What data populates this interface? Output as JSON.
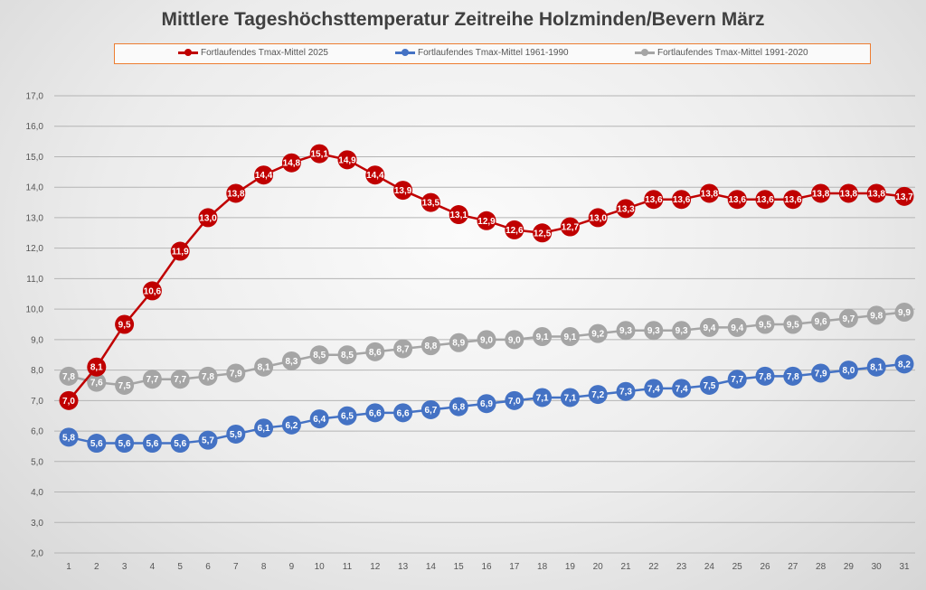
{
  "chart_data": {
    "type": "line",
    "title": "Mittlere Tageshöchsttemperatur Zeitreihe Holzminden/Bevern März",
    "xlabel": "",
    "ylabel": "",
    "ylim": [
      2.0,
      17.0
    ],
    "yticks": [
      "2,0",
      "3,0",
      "4,0",
      "5,0",
      "6,0",
      "7,0",
      "8,0",
      "9,0",
      "10,0",
      "11,0",
      "12,0",
      "13,0",
      "14,0",
      "15,0",
      "16,0",
      "17,0"
    ],
    "x": [
      1,
      2,
      3,
      4,
      5,
      6,
      7,
      8,
      9,
      10,
      11,
      12,
      13,
      14,
      15,
      16,
      17,
      18,
      19,
      20,
      21,
      22,
      23,
      24,
      25,
      26,
      27,
      28,
      29,
      30,
      31
    ],
    "grid": true,
    "legend_position": "top",
    "series": [
      {
        "name": "Fortlaufendes Tmax-Mittel 1991-2020",
        "color": "#a5a5a5",
        "values": [
          7.8,
          7.6,
          7.5,
          7.7,
          7.7,
          7.8,
          7.9,
          8.1,
          8.3,
          8.5,
          8.5,
          8.6,
          8.7,
          8.8,
          8.9,
          9.0,
          9.0,
          9.1,
          9.1,
          9.2,
          9.3,
          9.3,
          9.3,
          9.4,
          9.4,
          9.5,
          9.5,
          9.6,
          9.7,
          9.8,
          9.9
        ]
      },
      {
        "name": "Fortlaufendes Tmax-Mittel 1961-1990",
        "color": "#4472c4",
        "values": [
          5.8,
          5.6,
          5.6,
          5.6,
          5.6,
          5.7,
          5.9,
          6.1,
          6.2,
          6.4,
          6.5,
          6.6,
          6.6,
          6.7,
          6.8,
          6.9,
          7.0,
          7.1,
          7.1,
          7.2,
          7.3,
          7.4,
          7.4,
          7.5,
          7.7,
          7.8,
          7.8,
          7.9,
          8.0,
          8.1,
          8.2
        ]
      },
      {
        "name": "Fortlaufendes Tmax-Mittel 2025",
        "color": "#c00000",
        "values": [
          7.0,
          8.1,
          9.5,
          10.6,
          11.9,
          13.0,
          13.8,
          14.4,
          14.8,
          15.1,
          14.9,
          14.4,
          13.9,
          13.5,
          13.1,
          12.9,
          12.6,
          12.5,
          12.7,
          13.0,
          13.3,
          13.6,
          13.6,
          13.8,
          13.6,
          13.6,
          13.6,
          13.8,
          13.8,
          13.8,
          13.7
        ]
      }
    ],
    "legend": [
      "Fortlaufendes Tmax-Mittel 2025",
      "Fortlaufendes Tmax-Mittel 1961-1990",
      "Fortlaufendes Tmax-Mittel 1991-2020"
    ]
  }
}
